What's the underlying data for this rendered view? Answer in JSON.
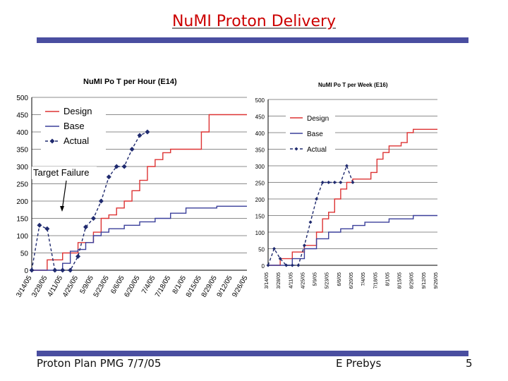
{
  "slide": {
    "title": "NuMI Proton Delivery",
    "footer_left": "Proton Plan PMG  7/7/05",
    "footer_center": "E Prebys",
    "footer_right": "5",
    "colors": {
      "title": "#cc0000",
      "rule": "#4a4ea0",
      "design": "#dd3333",
      "base": "#3a3f9a",
      "actual": "#1f2a6e"
    }
  },
  "chart_data": [
    {
      "type": "line",
      "title": "NuMI Po T per Hour (E14)",
      "xlabel": "",
      "ylabel": "",
      "ylim": [
        0,
        500
      ],
      "yticks": [
        0,
        50,
        100,
        150,
        200,
        250,
        300,
        350,
        400,
        450,
        500
      ],
      "xlim": [
        0,
        28
      ],
      "xtick_positions": [
        0,
        2,
        4,
        6,
        8,
        10,
        12,
        14,
        16,
        18,
        20,
        22,
        24,
        26,
        28
      ],
      "xtick_labels": [
        "3/14/05",
        "3/28/05",
        "4/11/05",
        "4/25/05",
        "5/9/05",
        "5/23/05",
        "6/6/05",
        "6/20/05",
        "7/4/05",
        "7/18/05",
        "8/1/05",
        "8/15/05",
        "8/29/05",
        "9/12/05",
        "9/26/05"
      ],
      "legend": {
        "position": "top-left",
        "entries": [
          "Design",
          "Base",
          "Actual"
        ]
      },
      "annotation": "Target Failure",
      "series": [
        {
          "name": "Design",
          "style": "step",
          "x": [
            0,
            2,
            4,
            6,
            8,
            9,
            10,
            11,
            12,
            13,
            14,
            15,
            16,
            17,
            18,
            19,
            20,
            21,
            22,
            23,
            24,
            25,
            26,
            27,
            28
          ],
          "values": [
            0,
            30,
            50,
            80,
            110,
            150,
            160,
            180,
            200,
            230,
            260,
            300,
            320,
            340,
            350,
            350,
            350,
            350,
            400,
            450,
            450,
            450,
            450,
            450,
            450
          ]
        },
        {
          "name": "Base",
          "style": "step",
          "x": [
            0,
            2,
            4,
            5,
            6,
            7,
            8,
            9,
            10,
            12,
            14,
            16,
            18,
            20,
            22,
            24,
            26,
            28
          ],
          "values": [
            0,
            0,
            20,
            55,
            60,
            80,
            100,
            110,
            120,
            130,
            140,
            150,
            165,
            180,
            180,
            185,
            185,
            185
          ]
        },
        {
          "name": "Actual",
          "style": "markers",
          "x": [
            0,
            1,
            2,
            3,
            4,
            5,
            6,
            7,
            8,
            9,
            10,
            11,
            12,
            13,
            14,
            15
          ],
          "values": [
            0,
            130,
            120,
            0,
            0,
            0,
            40,
            125,
            150,
            200,
            270,
            300,
            300,
            350,
            390,
            400
          ]
        }
      ]
    },
    {
      "type": "line",
      "title": "NuMI Po T per Week (E16)",
      "xlabel": "",
      "ylabel": "",
      "ylim": [
        0,
        500
      ],
      "yticks": [
        0,
        50,
        100,
        150,
        200,
        250,
        300,
        350,
        400,
        450,
        500
      ],
      "xlim": [
        0,
        28
      ],
      "xtick_positions": [
        0,
        2,
        4,
        6,
        8,
        10,
        12,
        14,
        16,
        18,
        20,
        22,
        24,
        26,
        28
      ],
      "xtick_labels": [
        "3/14/05",
        "3/28/05",
        "4/11/05",
        "4/25/05",
        "5/9/05",
        "5/23/05",
        "6/6/05",
        "6/20/05",
        "7/4/05",
        "7/18/05",
        "8/1/05",
        "8/15/05",
        "8/29/05",
        "9/12/05",
        "9/26/05"
      ],
      "legend": {
        "position": "top-left",
        "entries": [
          "Design",
          "Base",
          "Actual"
        ]
      },
      "series": [
        {
          "name": "Design",
          "style": "step",
          "x": [
            0,
            2,
            4,
            6,
            8,
            9,
            10,
            11,
            12,
            13,
            14,
            15,
            16,
            17,
            18,
            19,
            20,
            21,
            22,
            23,
            24,
            25,
            26,
            27,
            28
          ],
          "values": [
            0,
            20,
            40,
            60,
            100,
            140,
            160,
            200,
            230,
            250,
            260,
            260,
            260,
            280,
            320,
            340,
            360,
            360,
            370,
            400,
            410,
            410,
            410,
            410,
            410
          ]
        },
        {
          "name": "Base",
          "style": "step",
          "x": [
            0,
            2,
            4,
            6,
            8,
            10,
            12,
            14,
            16,
            18,
            20,
            22,
            24,
            26,
            28
          ],
          "values": [
            0,
            0,
            20,
            50,
            80,
            100,
            110,
            120,
            130,
            130,
            140,
            140,
            150,
            150,
            150
          ]
        },
        {
          "name": "Actual",
          "style": "markers",
          "x": [
            0,
            1,
            2,
            3,
            4,
            5,
            6,
            7,
            8,
            9,
            10,
            11,
            12,
            13,
            14
          ],
          "values": [
            0,
            50,
            20,
            0,
            0,
            0,
            60,
            130,
            200,
            250,
            250,
            250,
            250,
            300,
            250
          ]
        }
      ]
    }
  ]
}
